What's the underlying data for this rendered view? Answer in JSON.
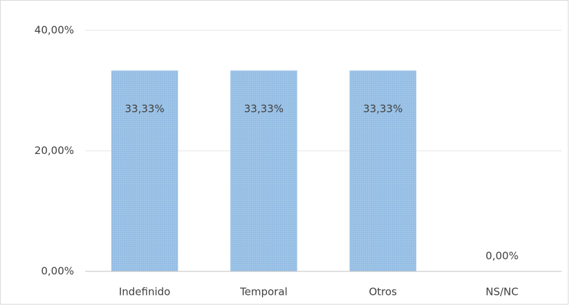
{
  "chart_data": {
    "type": "bar",
    "categories": [
      "Indefinido",
      "Temporal",
      "Otros",
      "NS/NC"
    ],
    "values": [
      33.33,
      33.33,
      33.33,
      0
    ],
    "value_labels": [
      "33,33%",
      "33,33%",
      "33,33%",
      "0,00%"
    ],
    "color": "#9dc3e6",
    "ylim": [
      0,
      40
    ],
    "yticks": [
      {
        "value": 0,
        "label": "0,00%"
      },
      {
        "value": 20,
        "label": "20,00%"
      },
      {
        "value": 40,
        "label": "40,00%"
      }
    ],
    "grid": true
  }
}
